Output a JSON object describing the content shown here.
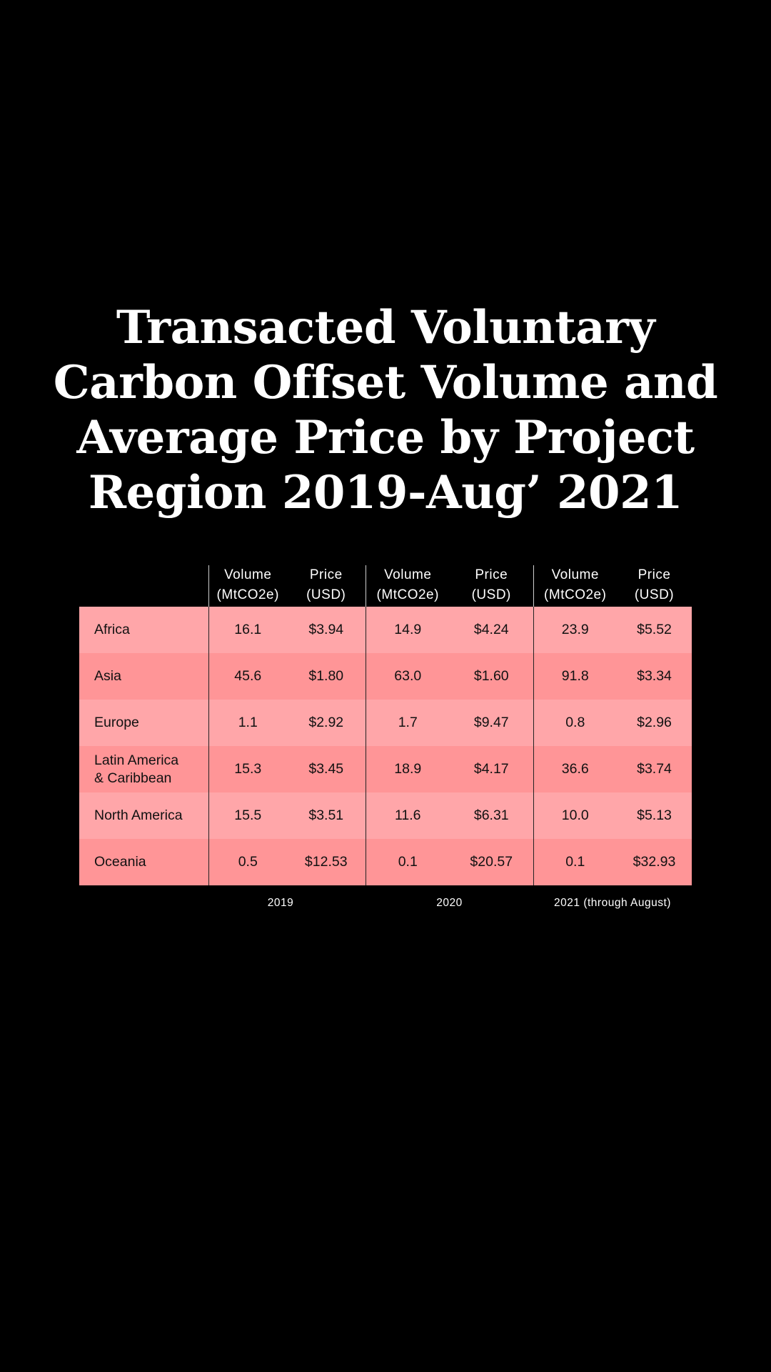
{
  "title_lines": [
    "Transacted Voluntary",
    "Carbon Offset Volume and",
    "Average Price by Project",
    "Region 2019-Aug’ 2021"
  ],
  "chart_data": {
    "type": "table",
    "title": "Transacted Voluntary Carbon Offset Volume and Average Price by Project Region 2019-Aug’ 2021",
    "column_headers": [
      "Volume (MtCO2e)",
      "Price (USD)",
      "Volume (MtCO2e)",
      "Price (USD)",
      "Volume (MtCO2e)",
      "Price (USD)"
    ],
    "header_line1": [
      "Volume",
      "Price",
      "Volume",
      "Price",
      "Volume",
      "Price"
    ],
    "header_line2": [
      "(MtCO2e)",
      "(USD)",
      "(MtCO2e)",
      "(USD)",
      "(MtCO2e)",
      "(USD)"
    ],
    "periods": [
      "2019",
      "2020",
      "2021 (through August)"
    ],
    "rows": [
      {
        "region": "Africa",
        "values": [
          "16.1",
          "$3.94",
          "14.9",
          "$4.24",
          "23.9",
          "$5.52"
        ]
      },
      {
        "region": "Asia",
        "values": [
          "45.6",
          "$1.80",
          "63.0",
          "$1.60",
          "91.8",
          "$3.34"
        ]
      },
      {
        "region": "Europe",
        "values": [
          "1.1",
          "$2.92",
          "1.7",
          "$9.47",
          "0.8",
          "$2.96"
        ]
      },
      {
        "region_line1": "Latin America",
        "region_line2": "& Caribbean",
        "values": [
          "15.3",
          "$3.45",
          "18.9",
          "$4.17",
          "36.6",
          "$3.74"
        ]
      },
      {
        "region": "North America",
        "values": [
          "15.5",
          "$3.51",
          "11.6",
          "$6.31",
          "10.0",
          "$5.13"
        ]
      },
      {
        "region": "Oceania",
        "values": [
          "0.5",
          "$12.53",
          "0.1",
          "$20.57",
          "0.1",
          "$32.93"
        ]
      }
    ]
  },
  "colors": {
    "background": "#000000",
    "row_light": "#ffa6a9",
    "row_dark": "#ff9597",
    "title_text": "#ffffff",
    "cell_text": "#111111"
  }
}
